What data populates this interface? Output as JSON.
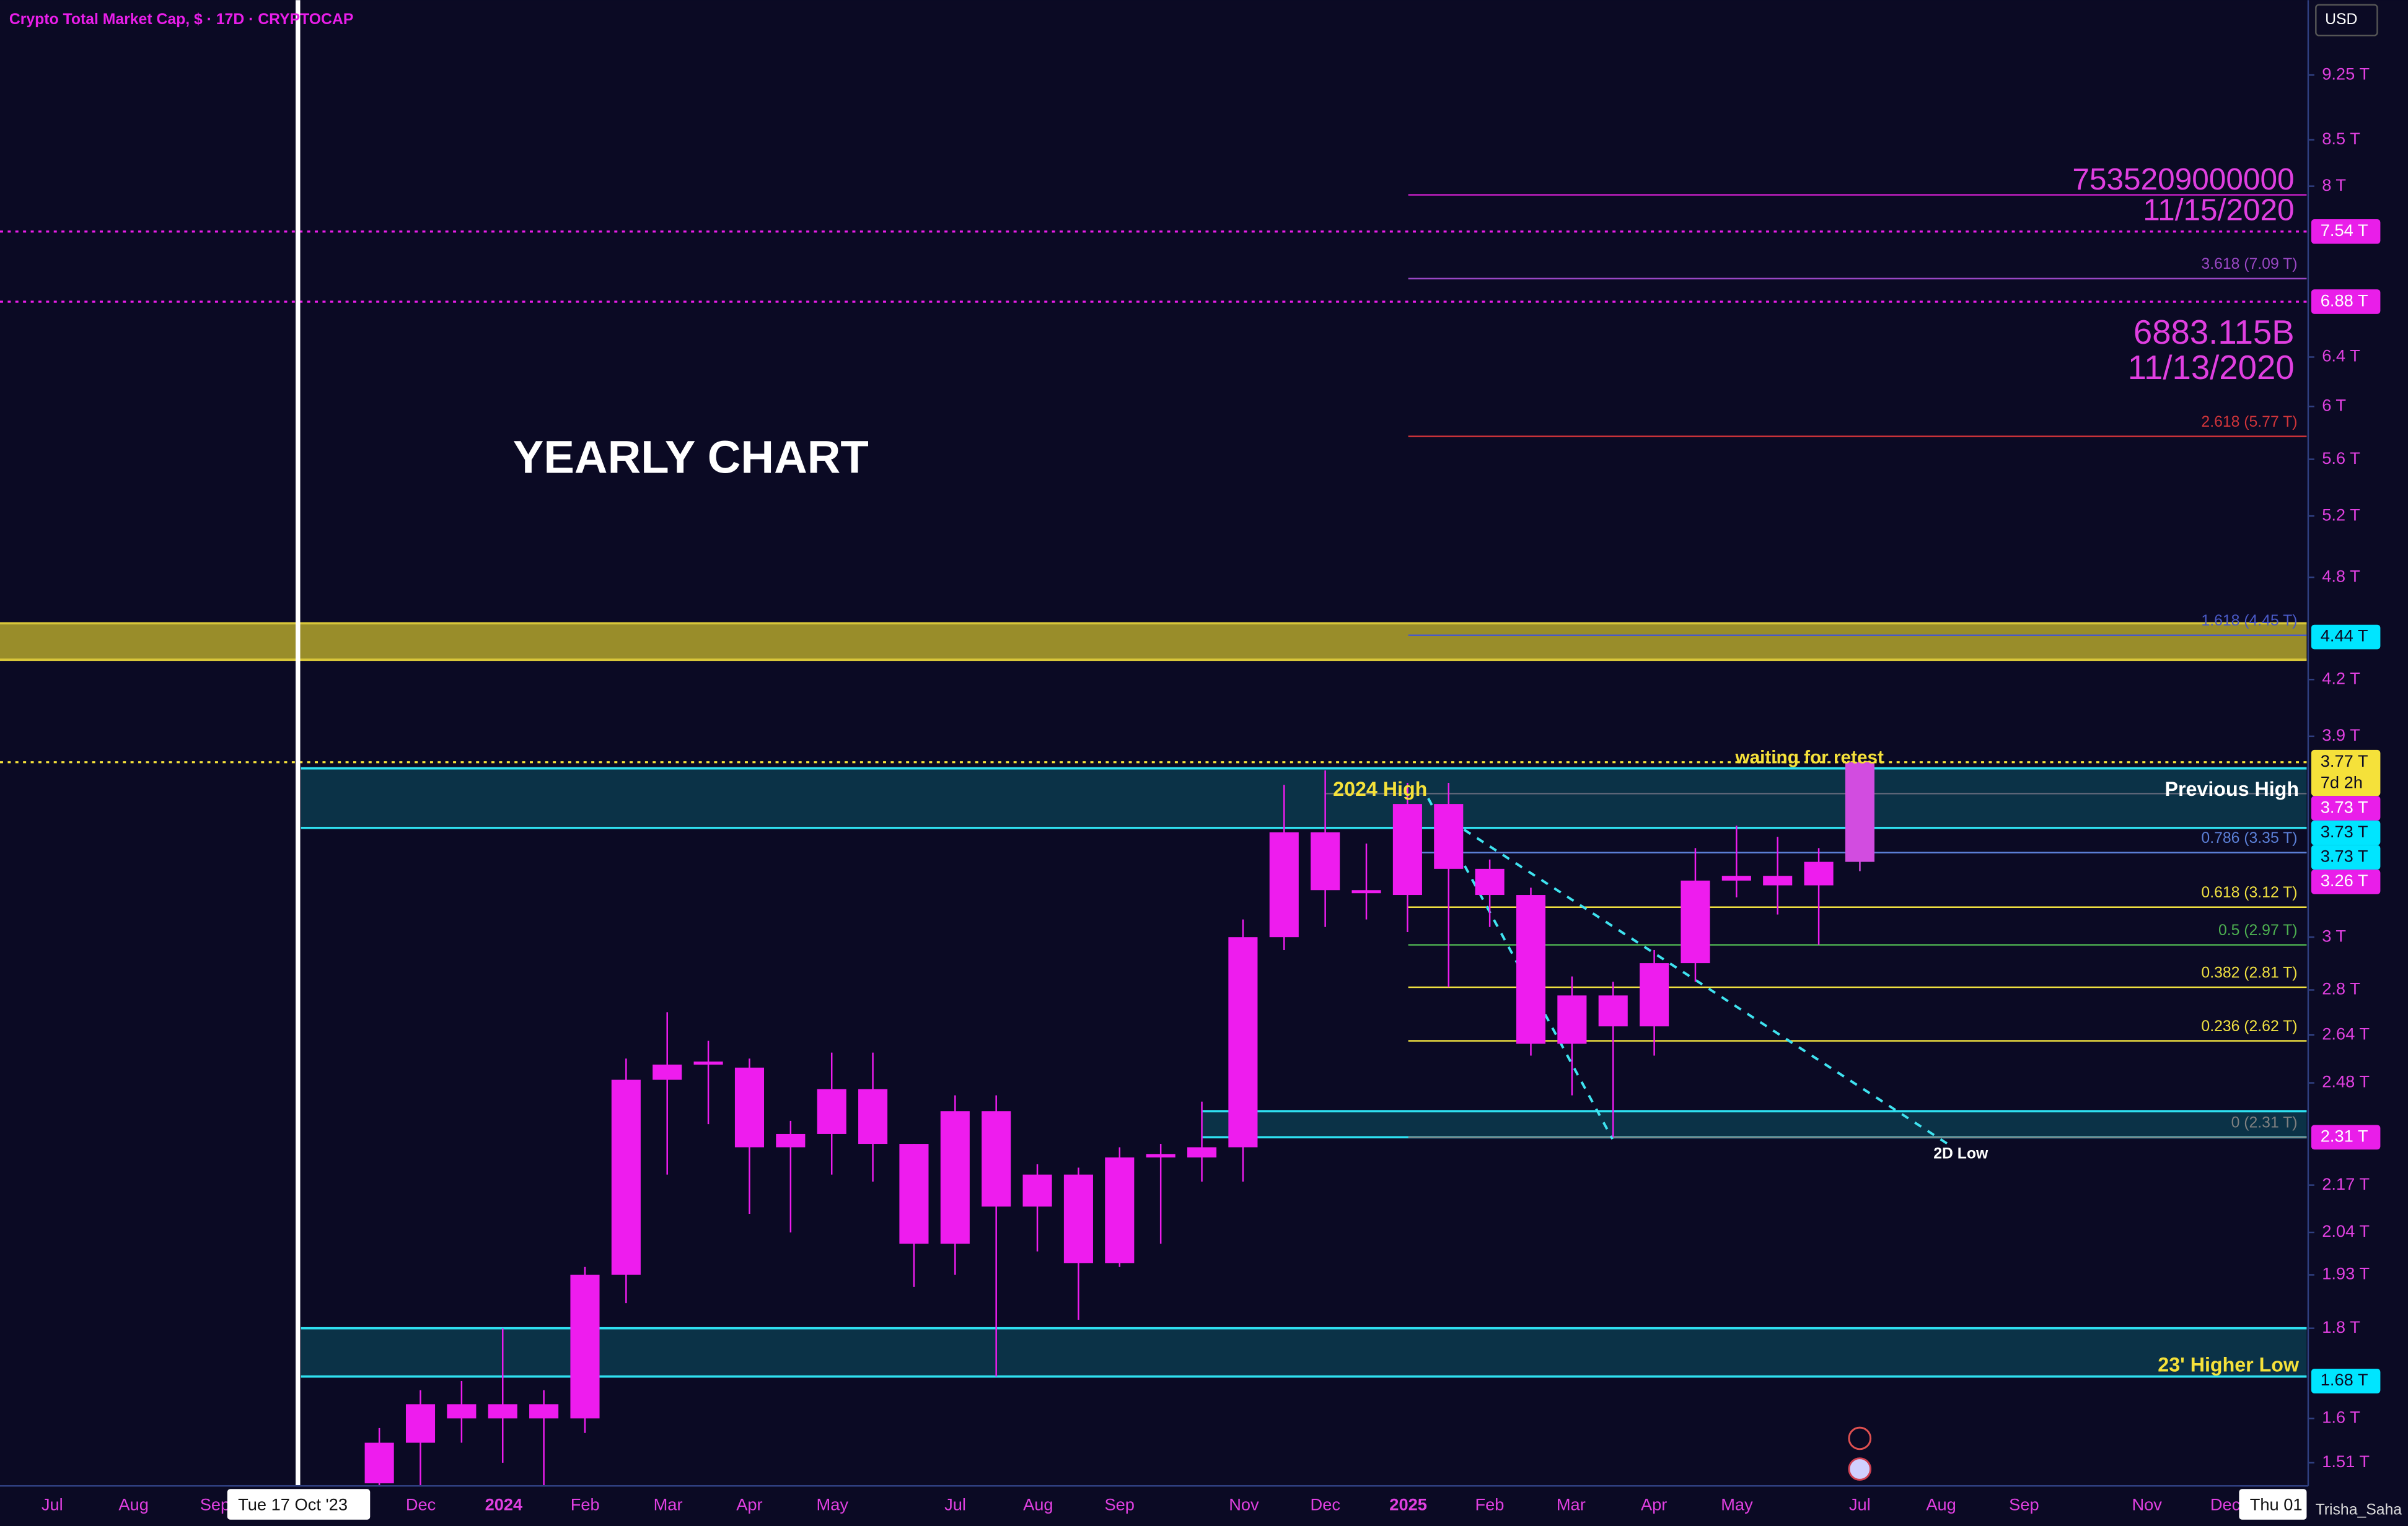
{
  "chart_data": {
    "type": "candlestick",
    "title": "Crypto Total Market Cap, $ · 17D · CRYPTOCAP",
    "currency": "USD",
    "log_scale": true,
    "ylim": [
      1.465,
      10.2
    ],
    "yticks": [
      {
        "value": 9.25,
        "label": "9.25 T"
      },
      {
        "value": 8.5,
        "label": "8.5 T"
      },
      {
        "value": 8,
        "label": "8 T"
      },
      {
        "value": 6.4,
        "label": "6.4 T"
      },
      {
        "value": 6,
        "label": "6 T"
      },
      {
        "value": 5.6,
        "label": "5.6 T"
      },
      {
        "value": 5.2,
        "label": "5.2 T"
      },
      {
        "value": 4.8,
        "label": "4.8 T"
      },
      {
        "value": 4.2,
        "label": "4.2 T"
      },
      {
        "value": 3.9,
        "label": "3.9 T"
      },
      {
        "value": 3,
        "label": "3 T"
      },
      {
        "value": 2.8,
        "label": "2.8 T"
      },
      {
        "value": 2.64,
        "label": "2.64 T"
      },
      {
        "value": 2.48,
        "label": "2.48 T"
      },
      {
        "value": 2.17,
        "label": "2.17 T"
      },
      {
        "value": 2.04,
        "label": "2.04 T"
      },
      {
        "value": 1.93,
        "label": "1.93 T"
      },
      {
        "value": 1.8,
        "label": "1.8 T"
      },
      {
        "value": 1.6,
        "label": "1.6 T"
      },
      {
        "value": 1.51,
        "label": "1.51 T"
      }
    ],
    "x_labels": [
      "Jul",
      "Aug",
      "Sep",
      "Dec",
      "2024",
      "Feb",
      "Mar",
      "Apr",
      "May",
      "Jul",
      "Aug",
      "Sep",
      "Nov",
      "Dec",
      "2025",
      "Feb",
      "Mar",
      "Apr",
      "May",
      "Jul",
      "Aug",
      "Sep",
      "Nov",
      "Dec"
    ],
    "series": [
      {
        "color": "#ee1cee",
        "last_color": "#d24ce0",
        "open": [
          1.47,
          1.55,
          1.63,
          1.6,
          1.63,
          1.6,
          1.93,
          2.49,
          2.54,
          2.53,
          2.28,
          2.32,
          2.46,
          2.29,
          2.01,
          2.39,
          2.11,
          2.2,
          1.96,
          2.26,
          2.25,
          2.28,
          3.0,
          3.44,
          3.19,
          3.17,
          3.57,
          3.28,
          3.17,
          2.61,
          2.78,
          2.67,
          2.9,
          3.23,
          3.25,
          3.21,
          3.31
        ],
        "high": [
          1.58,
          1.66,
          1.68,
          1.8,
          1.66,
          1.95,
          2.56,
          2.72,
          2.62,
          2.56,
          2.36,
          2.58,
          2.58,
          2.29,
          2.44,
          2.44,
          2.23,
          2.22,
          2.28,
          2.29,
          2.42,
          3.07,
          3.66,
          3.73,
          3.39,
          3.67,
          3.67,
          3.32,
          3.2,
          2.85,
          2.83,
          2.95,
          3.37,
          3.47,
          3.42,
          3.37,
          3.78
        ],
        "low": [
          1.46,
          1.46,
          1.55,
          1.51,
          1.46,
          1.57,
          1.86,
          2.2,
          2.35,
          2.09,
          2.04,
          2.2,
          2.18,
          1.9,
          1.93,
          1.69,
          1.99,
          1.82,
          1.95,
          2.01,
          2.18,
          2.18,
          2.95,
          3.04,
          3.07,
          3.02,
          2.81,
          3.04,
          2.57,
          2.44,
          2.31,
          2.57,
          2.83,
          3.16,
          3.09,
          2.97,
          3.27
        ],
        "close": [
          1.55,
          1.63,
          1.6,
          1.63,
          1.6,
          1.93,
          2.49,
          2.54,
          2.55,
          2.28,
          2.32,
          2.46,
          2.29,
          2.01,
          2.39,
          2.11,
          2.2,
          1.96,
          2.25,
          2.25,
          2.28,
          3.0,
          3.44,
          3.19,
          3.18,
          3.57,
          3.28,
          3.17,
          2.61,
          2.78,
          2.67,
          2.9,
          3.23,
          3.25,
          3.21,
          3.31,
          3.77
        ]
      }
    ],
    "price_labels": [
      {
        "value": 7.54,
        "label": "7.54 T",
        "color": "#e91ee9",
        "line": true
      },
      {
        "value": 6.88,
        "label": "6.88 T",
        "color": "#e91ee9",
        "line": true
      },
      {
        "value": 4.44,
        "label": "4.44 T",
        "color": "#00e5ff"
      },
      {
        "value": 3.77,
        "label": "3.77 T",
        "sublabel": "7d 2h",
        "color": "#f5e13a",
        "line": true
      },
      {
        "value": 3.73,
        "label": "3.73 T",
        "color": "#e91ee9"
      },
      {
        "value": 3.73,
        "label": "3.73 T",
        "color": "#00e5ff"
      },
      {
        "value": 3.73,
        "label": "3.73 T",
        "color": "#00e5ff"
      },
      {
        "value": 3.26,
        "label": "3.26 T",
        "color": "#e91ee9"
      },
      {
        "value": 2.31,
        "label": "2.31 T",
        "color": "#e91ee9"
      },
      {
        "value": 1.68,
        "label": "1.68 T",
        "color": "#00e5ff"
      }
    ],
    "fib_levels": [
      {
        "value": 7.91,
        "color": "#c41fc4"
      },
      {
        "value": 7.09,
        "label": "3.618 (7.09 T)",
        "color": "#9a47c4"
      },
      {
        "value": 5.77,
        "label": "2.618 (5.77 T)",
        "color": "#d0343a"
      },
      {
        "value": 4.45,
        "label": "1.618 (4.45 T)",
        "color": "#4a5ac8"
      },
      {
        "value": 3.35,
        "label": "0.786 (3.35 T)",
        "color": "#5b7fd6"
      },
      {
        "value": 3.12,
        "label": "0.618 (3.12 T)",
        "color": "#f0e040"
      },
      {
        "value": 2.97,
        "label": "0.5 (2.97 T)",
        "color": "#4caf50"
      },
      {
        "value": 2.81,
        "label": "0.382 (2.81 T)",
        "color": "#f0e040"
      },
      {
        "value": 2.62,
        "label": "0.236 (2.62 T)",
        "color": "#f0e040"
      },
      {
        "value": 2.31,
        "label": "0 (2.31 T)",
        "color": "#808080"
      }
    ],
    "zones": [
      {
        "low": 4.31,
        "high": 4.52,
        "color": "#b3a52c",
        "border": "#d8c63a"
      },
      {
        "low": 3.46,
        "high": 3.74,
        "color": "#0c3a4e",
        "border": "#2fe0f0"
      },
      {
        "low": 2.31,
        "high": 2.39,
        "color": "#0c3a4e",
        "border": "#2fe0f0"
      },
      {
        "low": 1.69,
        "high": 1.8,
        "color": "#0c3a4e",
        "border": "#2fe0f0"
      }
    ],
    "annotations": [
      {
        "text": "YEARLY CHART",
        "color": "#ffffff"
      },
      {
        "text": "7535209000000",
        "color": "#e03fe0"
      },
      {
        "text": "11/15/2020",
        "color": "#e03fe0"
      },
      {
        "text": "6883.115B",
        "color": "#e03fe0"
      },
      {
        "text": "11/13/2020",
        "color": "#e03fe0"
      },
      {
        "text": "2024 High",
        "color": "#f5e13a"
      },
      {
        "text": "Previous High",
        "color": "#ffffff"
      },
      {
        "text": "waiting for retest",
        "color": "#f5e13a"
      },
      {
        "text": "2D Low",
        "color": "#ffffff"
      },
      {
        "text": "23' Higher Low",
        "color": "#f5e13a"
      }
    ],
    "cursor_labels": [
      "Tue 17 Oct '23",
      "Thu 01"
    ],
    "watermark": "Trisha_Saha"
  }
}
